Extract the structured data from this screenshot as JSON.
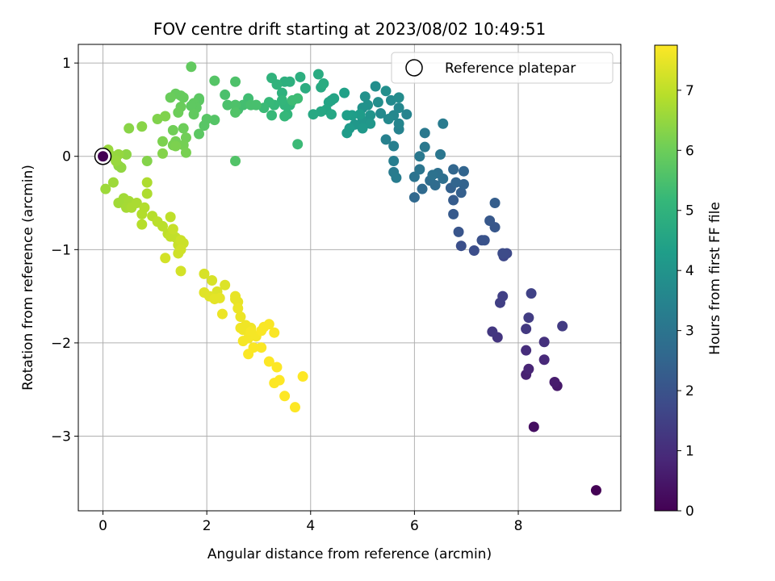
{
  "chart_data": {
    "type": "scatter",
    "title": "FOV centre drift starting at 2023/08/02 10:49:51",
    "xlabel": "Angular distance from reference (arcmin)",
    "ylabel": "Rotation from reference (arcmin)",
    "xlim": [
      -0.475,
      9.975
    ],
    "ylim": [
      -3.8,
      1.2
    ],
    "x_ticks": [
      0,
      2,
      4,
      6,
      8
    ],
    "x_tick_labels": [
      "0",
      "2",
      "4",
      "6",
      "8"
    ],
    "y_ticks": [
      -3,
      -2,
      -1,
      0,
      1
    ],
    "y_tick_labels": [
      "−3",
      "−2",
      "−1",
      "0",
      "1"
    ],
    "grid": true,
    "legend": {
      "position": "top-right",
      "entries": [
        "Reference platepar"
      ]
    },
    "colorbar": {
      "label": "Hours from first FF file",
      "range": [
        0,
        7.75
      ],
      "ticks": [
        0,
        1,
        2,
        3,
        4,
        5,
        6,
        7
      ],
      "tick_labels": [
        "0",
        "1",
        "2",
        "3",
        "4",
        "5",
        "6",
        "7"
      ],
      "colormap": "viridis",
      "colors": [
        "#440154",
        "#482878",
        "#3e4989",
        "#31688e",
        "#26828e",
        "#1f9e89",
        "#35b779",
        "#6ece58",
        "#b5de2b",
        "#fde725"
      ]
    },
    "reference_point": {
      "x": 0,
      "y": 0
    },
    "series": [
      {
        "points": [
          [
            9.5,
            -3.58,
            0.02
          ],
          [
            8.3,
            -2.9,
            0.3
          ],
          [
            8.75,
            -2.46,
            0.5
          ],
          [
            8.7,
            -2.42,
            0.6
          ],
          [
            8.15,
            -2.34,
            0.7
          ],
          [
            8.2,
            -2.28,
            0.8
          ],
          [
            8.5,
            -2.18,
            0.9
          ],
          [
            8.15,
            -2.08,
            1.0
          ],
          [
            8.5,
            -1.99,
            1.1
          ],
          [
            7.6,
            -1.94,
            1.2
          ],
          [
            7.5,
            -1.88,
            1.25
          ],
          [
            8.15,
            -1.85,
            1.3
          ],
          [
            8.85,
            -1.82,
            1.35
          ],
          [
            8.2,
            -1.73,
            1.4
          ],
          [
            7.65,
            -1.57,
            1.45
          ],
          [
            7.7,
            -1.5,
            1.5
          ],
          [
            8.25,
            -1.47,
            1.55
          ],
          [
            7.72,
            -1.07,
            1.7
          ],
          [
            7.78,
            -1.04,
            1.75
          ],
          [
            7.7,
            -1.04,
            1.8
          ],
          [
            7.15,
            -1.01,
            1.85
          ],
          [
            6.9,
            -0.96,
            1.9
          ],
          [
            7.3,
            -0.9,
            1.95
          ],
          [
            7.35,
            -0.9,
            2.0
          ],
          [
            6.85,
            -0.81,
            2.05
          ],
          [
            7.55,
            -0.76,
            2.1
          ],
          [
            7.45,
            -0.69,
            2.15
          ],
          [
            6.75,
            -0.62,
            2.2
          ],
          [
            6.75,
            -0.47,
            2.25
          ],
          [
            7.55,
            -0.5,
            2.3
          ],
          [
            6.9,
            -0.39,
            2.35
          ],
          [
            6.7,
            -0.34,
            2.4
          ],
          [
            6.95,
            -0.3,
            2.45
          ],
          [
            6.8,
            -0.28,
            2.5
          ],
          [
            6.95,
            -0.16,
            2.5
          ],
          [
            6.75,
            -0.14,
            2.55
          ],
          [
            6.0,
            -0.44,
            2.6
          ],
          [
            6.15,
            -0.35,
            2.65
          ],
          [
            6.4,
            -0.31,
            2.7
          ],
          [
            6.3,
            -0.26,
            2.75
          ],
          [
            6.55,
            -0.24,
            2.8
          ],
          [
            6.45,
            -0.18,
            2.85
          ],
          [
            6.35,
            -0.2,
            2.9
          ],
          [
            6.0,
            -0.22,
            2.95
          ],
          [
            6.1,
            -0.14,
            3.0
          ],
          [
            6.5,
            0.02,
            3.05
          ],
          [
            6.2,
            0.1,
            3.1
          ],
          [
            6.1,
            0.0,
            3.1
          ],
          [
            6.2,
            0.25,
            3.15
          ],
          [
            6.55,
            0.35,
            3.2
          ],
          [
            5.6,
            -0.17,
            3.2
          ],
          [
            5.65,
            -0.23,
            3.25
          ],
          [
            5.6,
            -0.05,
            3.3
          ],
          [
            5.6,
            0.11,
            3.35
          ],
          [
            5.45,
            0.18,
            3.4
          ],
          [
            5.7,
            0.29,
            3.45
          ],
          [
            5.85,
            0.45,
            3.5
          ],
          [
            5.7,
            0.35,
            3.55
          ],
          [
            5.7,
            0.52,
            3.6
          ],
          [
            5.6,
            0.44,
            3.6
          ],
          [
            5.5,
            0.4,
            3.65
          ],
          [
            5.35,
            0.46,
            3.7
          ],
          [
            5.55,
            0.6,
            3.7
          ],
          [
            5.7,
            0.63,
            3.75
          ],
          [
            5.3,
            0.58,
            3.8
          ],
          [
            5.25,
            0.75,
            3.8
          ],
          [
            5.45,
            0.7,
            3.85
          ],
          [
            5.05,
            0.64,
            3.9
          ],
          [
            5.1,
            0.55,
            3.9
          ],
          [
            5.0,
            0.52,
            3.95
          ],
          [
            5.15,
            0.44,
            4.0
          ],
          [
            5.0,
            0.38,
            4.05
          ],
          [
            4.85,
            0.34,
            4.1
          ],
          [
            5.15,
            0.35,
            4.1
          ],
          [
            5.0,
            0.3,
            4.15
          ],
          [
            4.75,
            0.3,
            4.2
          ],
          [
            4.7,
            0.25,
            4.25
          ],
          [
            4.95,
            0.45,
            4.25
          ],
          [
            4.8,
            0.44,
            4.3
          ],
          [
            4.7,
            0.44,
            4.35
          ],
          [
            4.65,
            0.68,
            4.4
          ],
          [
            4.4,
            0.6,
            4.45
          ],
          [
            4.45,
            0.62,
            4.5
          ],
          [
            4.35,
            0.58,
            4.5
          ],
          [
            4.3,
            0.5,
            4.55
          ],
          [
            4.4,
            0.45,
            4.6
          ],
          [
            4.2,
            0.48,
            4.6
          ],
          [
            4.05,
            0.45,
            4.65
          ],
          [
            4.2,
            0.74,
            4.7
          ],
          [
            4.15,
            0.88,
            4.75
          ],
          [
            4.25,
            0.78,
            4.75
          ],
          [
            3.9,
            0.73,
            4.8
          ],
          [
            3.8,
            0.85,
            4.85
          ],
          [
            3.6,
            0.8,
            4.9
          ],
          [
            3.5,
            0.8,
            4.9
          ],
          [
            3.45,
            0.68,
            4.95
          ],
          [
            3.35,
            0.77,
            5.0
          ],
          [
            3.25,
            0.84,
            5.0
          ],
          [
            3.6,
            0.55,
            5.05
          ],
          [
            3.5,
            0.55,
            5.05
          ],
          [
            3.45,
            0.6,
            5.1
          ],
          [
            3.55,
            0.45,
            5.1
          ],
          [
            3.5,
            0.43,
            5.15
          ],
          [
            3.3,
            0.55,
            5.15
          ],
          [
            3.2,
            0.58,
            5.2
          ],
          [
            3.25,
            0.44,
            5.2
          ],
          [
            3.1,
            0.52,
            5.25
          ],
          [
            3.75,
            0.13,
            5.25
          ],
          [
            3.75,
            0.62,
            5.3
          ],
          [
            3.65,
            0.6,
            5.3
          ],
          [
            2.8,
            0.62,
            5.35
          ],
          [
            2.7,
            0.55,
            5.4
          ],
          [
            2.6,
            0.5,
            5.4
          ],
          [
            2.85,
            0.55,
            5.45
          ],
          [
            2.95,
            0.55,
            5.45
          ],
          [
            2.4,
            0.55,
            5.5
          ],
          [
            2.35,
            0.66,
            5.5
          ],
          [
            2.55,
            0.8,
            5.55
          ],
          [
            2.55,
            0.55,
            5.55
          ],
          [
            2.55,
            0.47,
            5.6
          ],
          [
            2.55,
            -0.05,
            5.6
          ],
          [
            2.15,
            0.81,
            5.65
          ],
          [
            2.15,
            0.39,
            5.65
          ],
          [
            2.0,
            0.4,
            5.7
          ],
          [
            1.95,
            0.33,
            5.7
          ],
          [
            1.85,
            0.24,
            5.75
          ],
          [
            1.85,
            0.6,
            5.75
          ],
          [
            1.85,
            0.62,
            5.75
          ],
          [
            1.75,
            0.57,
            5.8
          ],
          [
            1.8,
            0.52,
            5.8
          ],
          [
            1.7,
            0.54,
            5.8
          ],
          [
            1.75,
            0.45,
            5.85
          ],
          [
            1.7,
            0.96,
            5.85
          ],
          [
            1.55,
            0.63,
            5.9
          ],
          [
            1.5,
            0.65,
            5.9
          ],
          [
            1.4,
            0.67,
            5.9
          ],
          [
            1.3,
            0.63,
            5.95
          ],
          [
            1.5,
            0.53,
            5.95
          ],
          [
            1.45,
            0.47,
            6.0
          ],
          [
            1.55,
            0.3,
            6.0
          ],
          [
            1.35,
            0.28,
            6.05
          ],
          [
            1.6,
            0.2,
            6.05
          ],
          [
            1.4,
            0.16,
            6.1
          ],
          [
            1.55,
            0.12,
            6.1
          ],
          [
            1.35,
            0.12,
            6.15
          ],
          [
            1.6,
            0.04,
            6.15
          ],
          [
            1.4,
            0.11,
            6.2
          ],
          [
            1.15,
            0.16,
            6.2
          ],
          [
            1.05,
            0.4,
            6.25
          ],
          [
            1.2,
            0.43,
            6.25
          ],
          [
            1.15,
            0.03,
            6.3
          ],
          [
            0.85,
            -0.05,
            6.3
          ],
          [
            0.75,
            0.32,
            6.35
          ],
          [
            0.5,
            0.3,
            6.35
          ],
          [
            0.45,
            0.02,
            6.4
          ],
          [
            0.3,
            -0.1,
            6.45
          ],
          [
            0.35,
            -0.12,
            6.45
          ],
          [
            0.3,
            0.02,
            6.5
          ],
          [
            0.2,
            0.0,
            6.5
          ],
          [
            0.05,
            -0.01,
            6.5
          ],
          [
            0.1,
            0.07,
            6.55
          ],
          [
            0.25,
            -0.05,
            6.55
          ],
          [
            0.05,
            -0.35,
            6.6
          ],
          [
            0.2,
            -0.28,
            6.6
          ],
          [
            0.3,
            -0.5,
            6.65
          ],
          [
            0.4,
            -0.45,
            6.65
          ],
          [
            0.5,
            -0.48,
            6.7
          ],
          [
            0.45,
            -0.55,
            6.7
          ],
          [
            0.55,
            -0.55,
            6.75
          ],
          [
            0.65,
            -0.5,
            6.75
          ],
          [
            0.85,
            -0.4,
            6.8
          ],
          [
            0.85,
            -0.28,
            6.8
          ],
          [
            0.8,
            -0.55,
            6.85
          ],
          [
            0.75,
            -0.62,
            6.85
          ],
          [
            0.75,
            -0.73,
            6.9
          ],
          [
            0.95,
            -0.64,
            6.9
          ],
          [
            1.05,
            -0.7,
            6.95
          ],
          [
            1.15,
            -0.75,
            6.95
          ],
          [
            1.3,
            -0.65,
            7.0
          ],
          [
            1.25,
            -0.83,
            7.0
          ],
          [
            1.3,
            -0.86,
            7.05
          ],
          [
            1.4,
            -0.87,
            7.05
          ],
          [
            1.35,
            -0.78,
            7.1
          ],
          [
            1.45,
            -0.95,
            7.1
          ],
          [
            1.5,
            -0.9,
            7.15
          ],
          [
            1.55,
            -0.93,
            7.15
          ],
          [
            1.45,
            -1.04,
            7.2
          ],
          [
            1.5,
            -1.0,
            7.2
          ],
          [
            1.2,
            -1.09,
            7.25
          ],
          [
            1.5,
            -1.23,
            7.25
          ],
          [
            1.95,
            -1.26,
            7.3
          ],
          [
            2.1,
            -1.33,
            7.3
          ],
          [
            2.35,
            -1.38,
            7.35
          ],
          [
            2.2,
            -1.45,
            7.35
          ],
          [
            1.95,
            -1.46,
            7.4
          ],
          [
            2.05,
            -1.5,
            7.4
          ],
          [
            2.15,
            -1.53,
            7.45
          ],
          [
            2.25,
            -1.52,
            7.45
          ],
          [
            2.55,
            -1.5,
            7.5
          ],
          [
            2.6,
            -1.56,
            7.5
          ],
          [
            2.55,
            -1.53,
            7.5
          ],
          [
            2.6,
            -1.63,
            7.55
          ],
          [
            2.3,
            -1.69,
            7.55
          ],
          [
            2.65,
            -1.72,
            7.55
          ],
          [
            2.65,
            -1.84,
            7.6
          ],
          [
            2.7,
            -1.86,
            7.6
          ],
          [
            2.75,
            -1.81,
            7.6
          ],
          [
            2.85,
            -1.84,
            7.6
          ],
          [
            2.8,
            -1.95,
            7.65
          ],
          [
            2.7,
            -1.98,
            7.65
          ],
          [
            2.95,
            -1.93,
            7.65
          ],
          [
            2.85,
            -1.88,
            7.65
          ],
          [
            3.05,
            -1.87,
            7.7
          ],
          [
            3.1,
            -1.83,
            7.7
          ],
          [
            3.2,
            -1.8,
            7.7
          ],
          [
            3.3,
            -1.89,
            7.7
          ],
          [
            2.9,
            -2.05,
            7.72
          ],
          [
            2.8,
            -2.12,
            7.72
          ],
          [
            3.05,
            -2.05,
            7.72
          ],
          [
            3.2,
            -2.2,
            7.74
          ],
          [
            3.35,
            -2.26,
            7.74
          ],
          [
            3.3,
            -2.43,
            7.74
          ],
          [
            3.4,
            -2.4,
            7.75
          ],
          [
            3.5,
            -2.57,
            7.75
          ],
          [
            3.7,
            -2.69,
            7.75
          ],
          [
            3.85,
            -2.36,
            7.75
          ]
        ]
      }
    ]
  }
}
